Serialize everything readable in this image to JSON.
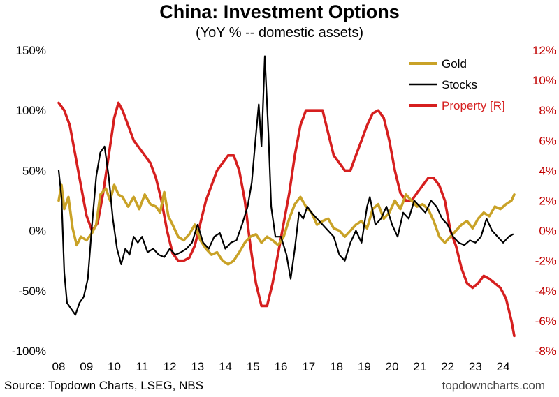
{
  "chart_data": {
    "type": "line",
    "title": "China: Investment Options",
    "subtitle": "(YoY % -- domestic assets)",
    "source": "Source: Topdown Charts, LSEG, NBS",
    "website": "topdowncharts.com",
    "x_tick_labels": [
      "08",
      "09",
      "10",
      "11",
      "12",
      "13",
      "14",
      "15",
      "16",
      "17",
      "18",
      "19",
      "20",
      "21",
      "22",
      "23",
      "24"
    ],
    "y_left": {
      "ylim": [
        -100,
        150
      ],
      "ticks": [
        150,
        100,
        50,
        0,
        -50,
        -100
      ],
      "tick_labels": [
        "150%",
        "100%",
        "50%",
        "0%",
        "-50%",
        "-100%"
      ]
    },
    "y_right": {
      "ylim": [
        -8,
        12
      ],
      "ticks": [
        12,
        10,
        8,
        6,
        4,
        2,
        0,
        -2,
        -4,
        -6,
        -8
      ],
      "tick_labels": [
        "12%",
        "10%",
        "8%",
        "6%",
        "4%",
        "2%",
        "0%",
        "-2%",
        "-4%",
        "-6%",
        "-8%"
      ]
    },
    "legend_position": "top-right",
    "series": [
      {
        "name": "Gold",
        "axis": "left",
        "color": "#c9a227",
        "x": [
          2008.0,
          2008.1,
          2008.2,
          2008.35,
          2008.5,
          2008.65,
          2008.8,
          2009.0,
          2009.2,
          2009.35,
          2009.5,
          2009.7,
          2009.85,
          2010.0,
          2010.15,
          2010.3,
          2010.5,
          2010.7,
          2010.9,
          2011.1,
          2011.3,
          2011.5,
          2011.65,
          2011.8,
          2011.95,
          2012.1,
          2012.3,
          2012.5,
          2012.7,
          2012.9,
          2013.1,
          2013.3,
          2013.5,
          2013.7,
          2013.9,
          2014.1,
          2014.3,
          2014.5,
          2014.7,
          2014.9,
          2015.1,
          2015.3,
          2015.5,
          2015.7,
          2015.9,
          2016.1,
          2016.3,
          2016.5,
          2016.7,
          2016.9,
          2017.1,
          2017.3,
          2017.5,
          2017.7,
          2017.9,
          2018.1,
          2018.3,
          2018.5,
          2018.7,
          2018.9,
          2019.1,
          2019.3,
          2019.5,
          2019.7,
          2019.9,
          2020.1,
          2020.3,
          2020.5,
          2020.7,
          2020.9,
          2021.1,
          2021.3,
          2021.5,
          2021.7,
          2021.9,
          2022.1,
          2022.3,
          2022.5,
          2022.7,
          2022.9,
          2023.1,
          2023.3,
          2023.5,
          2023.7,
          2023.9,
          2024.1,
          2024.3,
          2024.4
        ],
        "y": [
          25,
          38,
          18,
          28,
          2,
          -12,
          -5,
          -8,
          -2,
          5,
          30,
          35,
          25,
          38,
          30,
          28,
          20,
          28,
          18,
          30,
          22,
          20,
          15,
          32,
          12,
          5,
          -5,
          -8,
          -3,
          5,
          -8,
          -15,
          -20,
          -18,
          -25,
          -28,
          -25,
          -18,
          -10,
          -5,
          -3,
          -10,
          -5,
          -8,
          -12,
          -5,
          10,
          22,
          28,
          20,
          15,
          5,
          8,
          10,
          2,
          0,
          -5,
          0,
          5,
          8,
          2,
          18,
          22,
          10,
          15,
          25,
          18,
          30,
          25,
          20,
          22,
          18,
          8,
          -5,
          -10,
          -5,
          0,
          5,
          8,
          2,
          10,
          15,
          12,
          20,
          18,
          22,
          25,
          30
        ]
      },
      {
        "name": "Stocks",
        "axis": "left",
        "color": "#000000",
        "x": [
          2008.0,
          2008.1,
          2008.2,
          2008.3,
          2008.45,
          2008.6,
          2008.75,
          2008.9,
          2009.05,
          2009.2,
          2009.35,
          2009.5,
          2009.65,
          2009.8,
          2009.95,
          2010.1,
          2010.25,
          2010.4,
          2010.55,
          2010.7,
          2010.85,
          2011.0,
          2011.2,
          2011.4,
          2011.6,
          2011.8,
          2012.0,
          2012.2,
          2012.4,
          2012.6,
          2012.8,
          2013.0,
          2013.2,
          2013.4,
          2013.6,
          2013.8,
          2014.0,
          2014.2,
          2014.4,
          2014.6,
          2014.8,
          2014.95,
          2015.1,
          2015.2,
          2015.3,
          2015.42,
          2015.55,
          2015.65,
          2015.8,
          2016.0,
          2016.2,
          2016.35,
          2016.5,
          2016.65,
          2016.8,
          2016.95,
          2017.1,
          2017.3,
          2017.5,
          2017.7,
          2017.9,
          2018.1,
          2018.3,
          2018.5,
          2018.7,
          2018.9,
          2019.1,
          2019.2,
          2019.4,
          2019.6,
          2019.8,
          2020.0,
          2020.2,
          2020.4,
          2020.6,
          2020.8,
          2021.0,
          2021.2,
          2021.4,
          2021.6,
          2021.8,
          2022.0,
          2022.2,
          2022.4,
          2022.6,
          2022.8,
          2023.0,
          2023.2,
          2023.4,
          2023.6,
          2023.8,
          2024.0,
          2024.2,
          2024.35
        ],
        "y": [
          50,
          28,
          -35,
          -60,
          -65,
          -70,
          -60,
          -55,
          -40,
          5,
          45,
          65,
          70,
          45,
          10,
          -15,
          -28,
          -15,
          -20,
          -5,
          -10,
          -5,
          -18,
          -15,
          -20,
          -22,
          -15,
          -20,
          -18,
          -15,
          -10,
          5,
          -10,
          -15,
          -5,
          -2,
          -15,
          -10,
          -8,
          5,
          20,
          40,
          80,
          105,
          70,
          145,
          80,
          20,
          -5,
          -5,
          -20,
          -40,
          -15,
          15,
          10,
          20,
          15,
          10,
          5,
          0,
          -5,
          -20,
          -25,
          -10,
          0,
          -10,
          20,
          28,
          5,
          10,
          20,
          5,
          -5,
          15,
          10,
          25,
          20,
          15,
          25,
          20,
          10,
          5,
          -5,
          -10,
          -12,
          -8,
          -10,
          -5,
          10,
          0,
          -5,
          -10,
          -5,
          -3
        ]
      },
      {
        "name": "Property [R]",
        "axis": "right",
        "color": "#d61f1f",
        "x": [
          2008.0,
          2008.2,
          2008.4,
          2008.6,
          2008.8,
          2009.0,
          2009.2,
          2009.4,
          2009.6,
          2009.8,
          2010.0,
          2010.15,
          2010.3,
          2010.5,
          2010.7,
          2010.9,
          2011.1,
          2011.3,
          2011.5,
          2011.7,
          2011.9,
          2012.1,
          2012.3,
          2012.5,
          2012.7,
          2012.9,
          2013.1,
          2013.3,
          2013.5,
          2013.7,
          2013.9,
          2014.1,
          2014.3,
          2014.5,
          2014.7,
          2014.9,
          2015.1,
          2015.3,
          2015.5,
          2015.7,
          2015.9,
          2016.1,
          2016.3,
          2016.5,
          2016.7,
          2016.9,
          2017.1,
          2017.3,
          2017.5,
          2017.7,
          2017.9,
          2018.1,
          2018.3,
          2018.5,
          2018.7,
          2018.9,
          2019.1,
          2019.3,
          2019.5,
          2019.7,
          2019.9,
          2020.1,
          2020.3,
          2020.5,
          2020.7,
          2020.9,
          2021.1,
          2021.3,
          2021.5,
          2021.7,
          2021.9,
          2022.1,
          2022.3,
          2022.5,
          2022.7,
          2022.9,
          2023.1,
          2023.3,
          2023.5,
          2023.7,
          2023.9,
          2024.1,
          2024.3,
          2024.4
        ],
        "y": [
          8.5,
          8.0,
          7.0,
          5.0,
          3.0,
          1.0,
          0.0,
          0.5,
          2.5,
          5.0,
          7.5,
          8.5,
          8.0,
          7.0,
          6.0,
          5.5,
          5.0,
          4.5,
          3.5,
          2.0,
          0.0,
          -1.5,
          -2.0,
          -2.0,
          -1.8,
          -1.0,
          0.5,
          2.0,
          3.0,
          4.0,
          4.5,
          5.0,
          5.0,
          4.0,
          2.0,
          -1.0,
          -3.5,
          -5.0,
          -5.0,
          -3.5,
          -1.5,
          0.5,
          2.5,
          5.0,
          7.0,
          8.0,
          8.0,
          8.0,
          8.0,
          6.5,
          5.0,
          4.5,
          4.0,
          4.0,
          5.0,
          6.0,
          7.0,
          7.8,
          8.0,
          7.5,
          6.0,
          4.0,
          2.5,
          2.0,
          2.0,
          2.5,
          3.0,
          3.5,
          3.5,
          3.0,
          2.0,
          0.0,
          -1.0,
          -2.5,
          -3.5,
          -3.8,
          -3.5,
          -3.0,
          -3.2,
          -3.5,
          -3.8,
          -4.5,
          -6.0,
          -7.0
        ]
      }
    ]
  }
}
